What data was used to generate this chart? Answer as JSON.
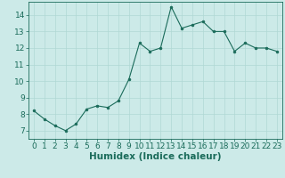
{
  "x": [
    0,
    1,
    2,
    3,
    4,
    5,
    6,
    7,
    8,
    9,
    10,
    11,
    12,
    13,
    14,
    15,
    16,
    17,
    18,
    19,
    20,
    21,
    22,
    23
  ],
  "y": [
    8.2,
    7.7,
    7.3,
    7.0,
    7.4,
    8.3,
    8.5,
    8.4,
    8.8,
    10.1,
    12.3,
    11.8,
    12.0,
    14.5,
    13.2,
    13.4,
    13.6,
    13.0,
    13.0,
    11.8,
    12.3,
    12.0,
    12.0,
    11.8
  ],
  "xlabel": "Humidex (Indice chaleur)",
  "ylim": [
    6.5,
    14.8
  ],
  "xlim": [
    -0.5,
    23.5
  ],
  "yticks": [
    7,
    8,
    9,
    10,
    11,
    12,
    13,
    14
  ],
  "xticks": [
    0,
    1,
    2,
    3,
    4,
    5,
    6,
    7,
    8,
    9,
    10,
    11,
    12,
    13,
    14,
    15,
    16,
    17,
    18,
    19,
    20,
    21,
    22,
    23
  ],
  "line_color": "#1a6b5a",
  "marker_color": "#1a6b5a",
  "bg_color": "#cceae8",
  "grid_color": "#b0d8d4",
  "tick_label_fontsize": 6.5,
  "xlabel_fontsize": 7.5
}
